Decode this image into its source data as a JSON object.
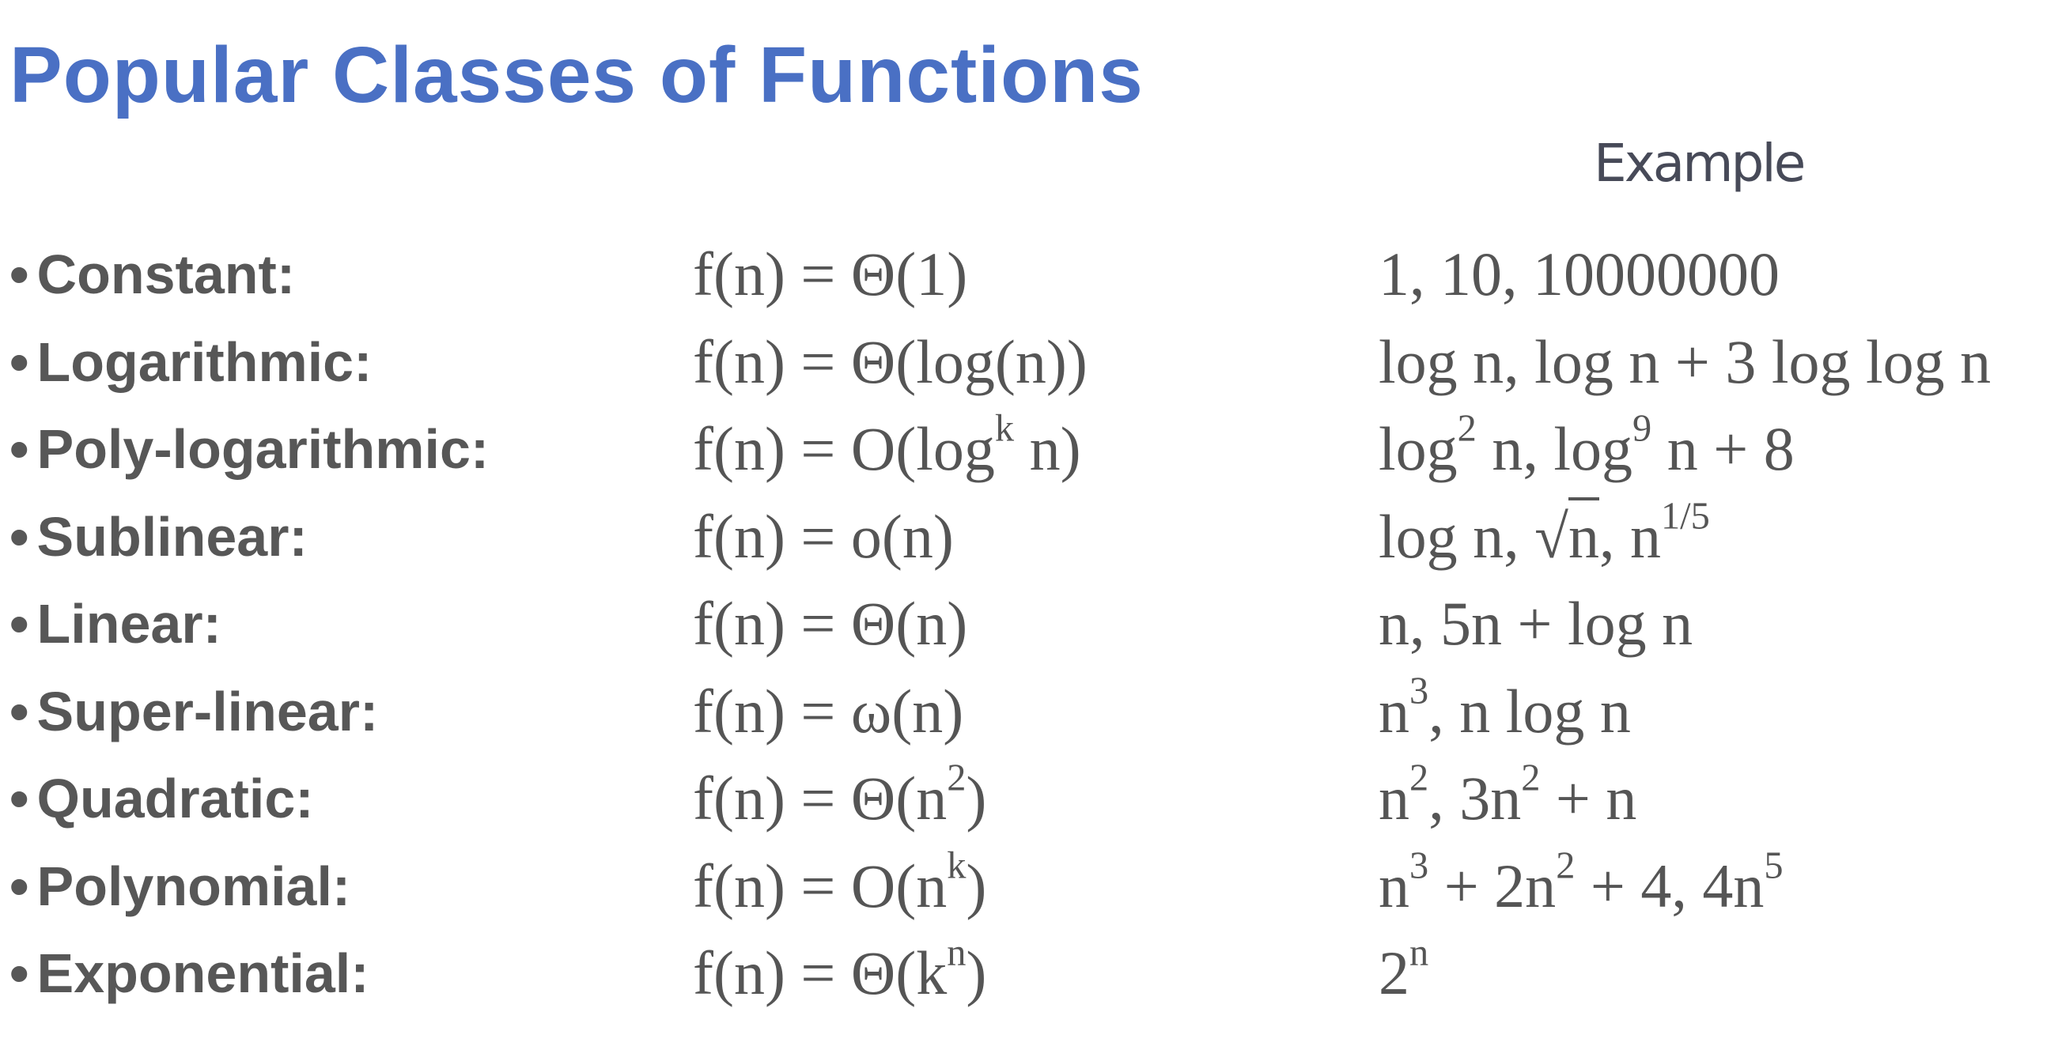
{
  "title": "Popular Classes of Functions",
  "example_header": "Example",
  "bullet": "•",
  "rows": [
    {
      "label": "Constant:",
      "formula": [
        {
          "t": "f(n) = Θ(1)"
        }
      ],
      "example": [
        {
          "t": "1, 10, 10000000"
        }
      ]
    },
    {
      "label": "Logarithmic:",
      "formula": [
        {
          "t": "f(n) = Θ(log(n))"
        }
      ],
      "example": [
        {
          "t": "log n, log n + 3 log log n"
        }
      ]
    },
    {
      "label": "Poly-logarithmic:",
      "formula": [
        {
          "t": "f(n) = O(log"
        },
        {
          "t": "k",
          "sup": true
        },
        {
          "t": " n)"
        }
      ],
      "example": [
        {
          "t": "log"
        },
        {
          "t": "2",
          "sup": true
        },
        {
          "t": " n, log"
        },
        {
          "t": "9",
          "sup": true
        },
        {
          "t": " n + 8"
        }
      ]
    },
    {
      "label": "Sublinear:",
      "formula": [
        {
          "t": "f(n) = o(n)"
        }
      ],
      "example": [
        {
          "t": "log n, √"
        },
        {
          "t": "n",
          "over": true
        },
        {
          "t": ", n"
        },
        {
          "t": "1/5",
          "sup": true
        }
      ]
    },
    {
      "label": "Linear:",
      "formula": [
        {
          "t": "f(n) = Θ(n)"
        }
      ],
      "example": [
        {
          "t": "n, 5n + log n"
        }
      ]
    },
    {
      "label": "Super-linear:",
      "formula": [
        {
          "t": "f(n) = ω(n)"
        }
      ],
      "example": [
        {
          "t": "n"
        },
        {
          "t": "3",
          "sup": true
        },
        {
          "t": ", n log n"
        }
      ]
    },
    {
      "label": "Quadratic:",
      "formula": [
        {
          "t": "f(n) = Θ(n"
        },
        {
          "t": "2",
          "sup": true
        },
        {
          "t": ")"
        }
      ],
      "example": [
        {
          "t": "n"
        },
        {
          "t": "2",
          "sup": true
        },
        {
          "t": ", 3n"
        },
        {
          "t": "2",
          "sup": true
        },
        {
          "t": " + n"
        }
      ]
    },
    {
      "label": "Polynomial:",
      "formula": [
        {
          "t": "f(n) = O(n"
        },
        {
          "t": "k",
          "sup": true
        },
        {
          "t": ")"
        }
      ],
      "example": [
        {
          "t": "n"
        },
        {
          "t": "3",
          "sup": true
        },
        {
          "t": " + 2n"
        },
        {
          "t": "2",
          "sup": true
        },
        {
          "t": " + 4, 4n"
        },
        {
          "t": "5",
          "sup": true
        }
      ]
    },
    {
      "label": "Exponential:",
      "formula": [
        {
          "t": "f(n) = Θ(k"
        },
        {
          "t": "n",
          "sup": true
        },
        {
          "t": ")"
        }
      ],
      "example": [
        {
          "t": "2"
        },
        {
          "t": "n",
          "sup": true
        }
      ]
    }
  ]
}
